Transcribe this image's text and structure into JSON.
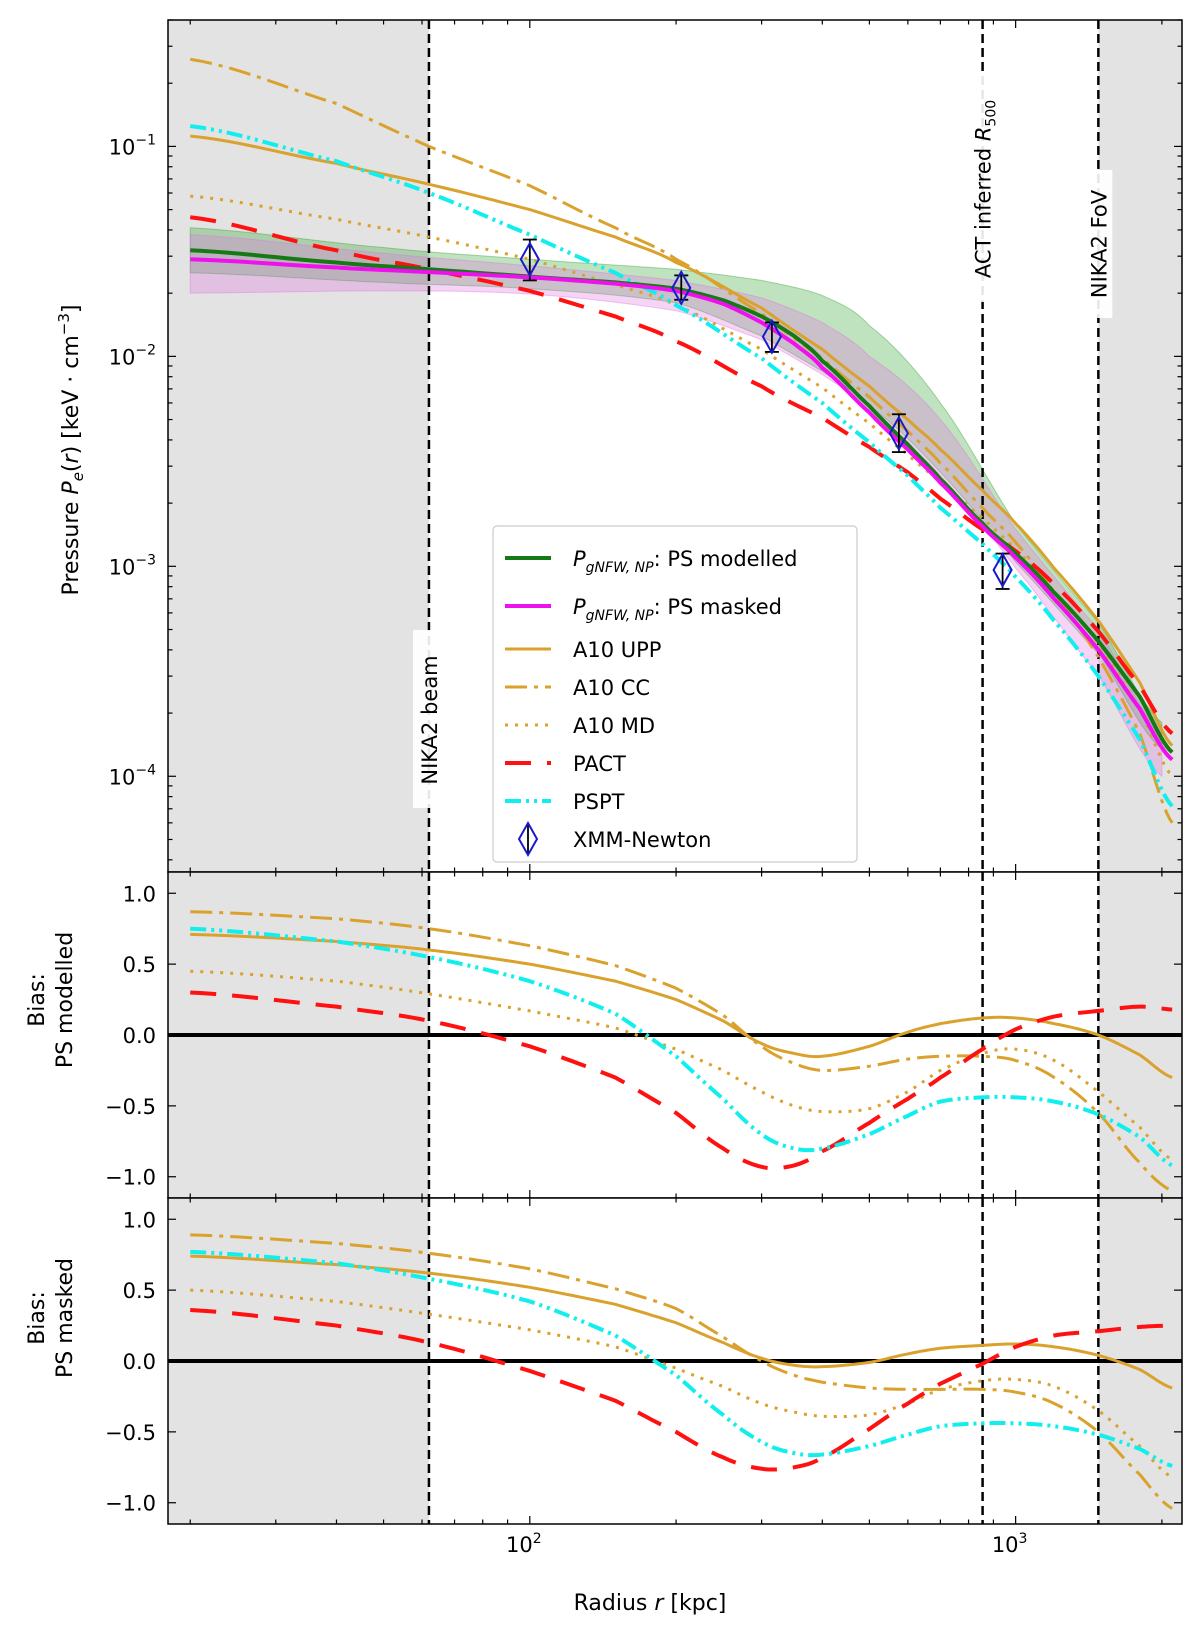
{
  "chart_data": [
    {
      "panel": "top",
      "type": "line",
      "xscale": "log",
      "yscale": "log",
      "xlim": [
        18,
        2200
      ],
      "ylim": [
        3.5e-05,
        0.4
      ],
      "xlabel": "Radius r [kpc]",
      "ylabel": "Pressure P_e(r) [keV · cm^-3]",
      "yticks": [
        {
          "value": 0.1,
          "label": "10",
          "exp": "−1"
        },
        {
          "value": 0.01,
          "label": "10",
          "exp": "−2"
        },
        {
          "value": 0.001,
          "label": "10",
          "exp": "−3"
        },
        {
          "value": 0.0001,
          "label": "10",
          "exp": "−4"
        }
      ],
      "shaded_regions": [
        {
          "x": [
            18,
            62
          ],
          "color": "#e3e3e3"
        },
        {
          "x": [
            1480,
            2200
          ],
          "color": "#e3e3e3"
        }
      ],
      "vlines": [
        {
          "x": 62,
          "label": "NIKA2 beam"
        },
        {
          "x": 855,
          "label": "ACT inferred R500"
        },
        {
          "x": 1480,
          "label": "NIKA2 FoV"
        }
      ],
      "bands": [
        {
          "name": "PS modelled band",
          "color": "#2ca02c",
          "x": [
            20,
            50,
            100,
            200,
            300,
            400,
            500,
            700,
            1000,
            1500,
            2000
          ],
          "lower": [
            0.025,
            0.0225,
            0.021,
            0.018,
            0.0125,
            0.0085,
            0.0058,
            0.0028,
            0.00105,
            0.00037,
            0.000135
          ],
          "upper": [
            0.041,
            0.033,
            0.029,
            0.026,
            0.023,
            0.0195,
            0.014,
            0.006,
            0.0016,
            0.00052,
            0.00018
          ]
        },
        {
          "name": "PS masked band",
          "color": "#e070e0",
          "x": [
            20,
            50,
            100,
            200,
            300,
            400,
            500,
            700,
            1000,
            1500,
            2000
          ],
          "lower": [
            0.02,
            0.0205,
            0.0198,
            0.0165,
            0.012,
            0.0082,
            0.0056,
            0.0027,
            0.00098,
            0.00029,
            0.0001
          ],
          "upper": [
            0.038,
            0.031,
            0.027,
            0.023,
            0.019,
            0.0145,
            0.01,
            0.005,
            0.0015,
            0.00048,
            0.00016
          ]
        }
      ],
      "series": [
        {
          "name": "P_gNFW,NP: PS modelled",
          "color": "#157a15",
          "dash": "",
          "width": 4,
          "x": [
            20,
            40,
            62,
            100,
            150,
            200,
            250,
            300,
            350,
            400,
            500,
            600,
            700,
            855,
            1000,
            1200,
            1480,
            1800,
            2100
          ],
          "y": [
            0.032,
            0.028,
            0.026,
            0.024,
            0.0225,
            0.021,
            0.0185,
            0.0155,
            0.0125,
            0.0095,
            0.0058,
            0.0038,
            0.0026,
            0.0016,
            0.00115,
            0.00075,
            0.00044,
            0.00024,
            0.00013
          ]
        },
        {
          "name": "P_gNFW,NP: PS masked",
          "color": "#ee11ee",
          "dash": "",
          "width": 4,
          "x": [
            20,
            40,
            62,
            100,
            150,
            200,
            250,
            300,
            350,
            400,
            500,
            600,
            700,
            855,
            1000,
            1200,
            1480,
            1800,
            2100
          ],
          "y": [
            0.029,
            0.0265,
            0.0252,
            0.0238,
            0.0222,
            0.0205,
            0.0178,
            0.0145,
            0.0115,
            0.0088,
            0.0054,
            0.0036,
            0.0025,
            0.00155,
            0.0011,
            0.0007,
            0.0004,
            0.00021,
            0.00012
          ]
        },
        {
          "name": "A10 UPP",
          "color": "#daa22d",
          "dash": "",
          "width": 3,
          "x": [
            20,
            40,
            62,
            100,
            150,
            200,
            300,
            400,
            500,
            600,
            700,
            855,
            1000,
            1200,
            1480,
            1800,
            2100
          ],
          "y": [
            0.112,
            0.083,
            0.066,
            0.05,
            0.037,
            0.028,
            0.017,
            0.0108,
            0.0072,
            0.005,
            0.0036,
            0.0023,
            0.0016,
            0.00098,
            0.00055,
            0.00028,
            0.00014
          ]
        },
        {
          "name": "A10 CC",
          "color": "#daa22d",
          "dash": "22 7 4 7",
          "width": 3,
          "x": [
            20,
            40,
            62,
            100,
            150,
            200,
            300,
            400,
            500,
            600,
            700,
            855,
            1000,
            1200,
            1480,
            1800,
            2100
          ],
          "y": [
            0.26,
            0.16,
            0.1,
            0.065,
            0.041,
            0.029,
            0.016,
            0.0098,
            0.0064,
            0.0044,
            0.0031,
            0.0019,
            0.0013,
            0.00075,
            0.00037,
            0.00016,
            6e-05
          ]
        },
        {
          "name": "A10 MD",
          "color": "#daa22d",
          "dash": "3 7",
          "width": 3,
          "x": [
            20,
            40,
            62,
            100,
            150,
            200,
            300,
            400,
            500,
            600,
            700,
            855,
            1000,
            1200,
            1480,
            1800,
            2100
          ],
          "y": [
            0.058,
            0.045,
            0.037,
            0.029,
            0.022,
            0.0175,
            0.0108,
            0.0071,
            0.0048,
            0.0034,
            0.0025,
            0.0017,
            0.0012,
            0.00076,
            0.00043,
            0.00021,
            0.0001
          ]
        },
        {
          "name": "PACT",
          "color": "#ff1111",
          "dash": "26 16",
          "width": 4,
          "x": [
            20,
            40,
            62,
            100,
            150,
            200,
            300,
            400,
            500,
            600,
            700,
            855,
            1000,
            1200,
            1480,
            1800,
            2100
          ],
          "y": [
            0.046,
            0.032,
            0.026,
            0.0205,
            0.0155,
            0.0118,
            0.0072,
            0.0051,
            0.0037,
            0.0028,
            0.0021,
            0.0015,
            0.00118,
            0.00082,
            0.00049,
            0.00027,
            0.00016
          ]
        },
        {
          "name": "PSPT",
          "color": "#11eeee",
          "dash": "16 5 3 5 3 5",
          "width": 4,
          "x": [
            20,
            40,
            62,
            100,
            150,
            200,
            300,
            400,
            500,
            600,
            700,
            855,
            1000,
            1200,
            1480,
            1800,
            2100
          ],
          "y": [
            0.125,
            0.085,
            0.06,
            0.038,
            0.025,
            0.0175,
            0.0098,
            0.006,
            0.0039,
            0.0027,
            0.0019,
            0.00128,
            0.00089,
            0.00055,
            0.0003,
            0.00015,
            7.2e-05
          ]
        }
      ],
      "points": {
        "name": "XMM-Newton",
        "color": "#1a1acc",
        "x": [
          100,
          205,
          315,
          575,
          940
        ],
        "y": [
          0.029,
          0.0212,
          0.0124,
          0.0043,
          0.00096
        ],
        "yerr_low": [
          0.023,
          0.0186,
          0.0105,
          0.0035,
          0.00078
        ],
        "yerr_high": [
          0.036,
          0.0243,
          0.0145,
          0.0053,
          0.00115
        ]
      },
      "legend": {
        "position": "center-bottom",
        "entries": [
          {
            "math": "P",
            "sub": "gNFW, NP",
            "text": ": PS modelled"
          },
          {
            "math": "P",
            "sub": "gNFW, NP",
            "text": ": PS masked"
          },
          {
            "text": "A10 UPP"
          },
          {
            "text": "A10 CC"
          },
          {
            "text": "A10 MD"
          },
          {
            "text": "PACT"
          },
          {
            "text": "PSPT"
          },
          {
            "text": "XMM-Newton"
          }
        ]
      }
    },
    {
      "panel": "middle",
      "type": "line",
      "xscale": "log",
      "ylim": [
        -1.15,
        1.15
      ],
      "ylabel": [
        "Bias:",
        "PS modelled"
      ],
      "yticks": [
        1.0,
        0.5,
        0.0,
        -0.5,
        -1.0
      ],
      "ytick_labels": [
        "1.0",
        "0.5",
        "0.0",
        "−0.5",
        "−1.0"
      ],
      "series": [
        {
          "name": "A10 UPP",
          "x": [
            20,
            40,
            62,
            100,
            150,
            200,
            250,
            300,
            350,
            400,
            500,
            600,
            700,
            855,
            1000,
            1200,
            1480,
            1800,
            2100
          ],
          "y": [
            0.71,
            0.66,
            0.6,
            0.5,
            0.38,
            0.25,
            0.1,
            -0.06,
            -0.13,
            -0.15,
            -0.08,
            0.02,
            0.08,
            0.12,
            0.12,
            0.08,
            0.0,
            -0.14,
            -0.3
          ]
        },
        {
          "name": "A10 CC",
          "x": [
            20,
            40,
            62,
            100,
            150,
            200,
            250,
            300,
            350,
            400,
            500,
            600,
            700,
            855,
            1000,
            1200,
            1480,
            1800,
            2100
          ],
          "y": [
            0.87,
            0.82,
            0.75,
            0.63,
            0.49,
            0.33,
            0.14,
            -0.08,
            -0.2,
            -0.25,
            -0.22,
            -0.17,
            -0.15,
            -0.15,
            -0.18,
            -0.3,
            -0.55,
            -0.9,
            -1.1
          ]
        },
        {
          "name": "A10 MD",
          "x": [
            20,
            40,
            62,
            100,
            150,
            200,
            250,
            300,
            350,
            400,
            500,
            600,
            700,
            855,
            1000,
            1200,
            1480,
            1800,
            2100
          ],
          "y": [
            0.45,
            0.38,
            0.29,
            0.17,
            0.05,
            -0.1,
            -0.25,
            -0.4,
            -0.5,
            -0.54,
            -0.52,
            -0.4,
            -0.25,
            -0.13,
            -0.1,
            -0.18,
            -0.4,
            -0.65,
            -0.88
          ]
        },
        {
          "name": "PACT",
          "x": [
            20,
            40,
            62,
            100,
            150,
            200,
            250,
            300,
            350,
            400,
            500,
            600,
            700,
            855,
            1000,
            1200,
            1480,
            1800,
            2100
          ],
          "y": [
            0.3,
            0.2,
            0.1,
            -0.08,
            -0.3,
            -0.55,
            -0.8,
            -0.93,
            -0.92,
            -0.82,
            -0.62,
            -0.45,
            -0.3,
            -0.1,
            0.04,
            0.13,
            0.17,
            0.2,
            0.18
          ]
        },
        {
          "name": "PSPT",
          "x": [
            20,
            40,
            62,
            100,
            150,
            200,
            250,
            300,
            350,
            400,
            500,
            600,
            700,
            855,
            1000,
            1200,
            1480,
            1800,
            2100
          ],
          "y": [
            0.75,
            0.66,
            0.55,
            0.38,
            0.15,
            -0.15,
            -0.45,
            -0.7,
            -0.8,
            -0.8,
            -0.7,
            -0.57,
            -0.47,
            -0.44,
            -0.44,
            -0.47,
            -0.56,
            -0.72,
            -0.92
          ]
        }
      ]
    },
    {
      "panel": "bottom",
      "type": "line",
      "xscale": "log",
      "ylim": [
        -1.15,
        1.15
      ],
      "xlabel": "Radius r [kpc]",
      "xticks": [
        {
          "value": 100,
          "label": "10",
          "exp": "2"
        },
        {
          "value": 1000,
          "label": "10",
          "exp": "3"
        }
      ],
      "ylabel": [
        "Bias:",
        "PS masked"
      ],
      "yticks": [
        1.0,
        0.5,
        0.0,
        -0.5,
        -1.0
      ],
      "ytick_labels": [
        "1.0",
        "0.5",
        "0.0",
        "−0.5",
        "−1.0"
      ],
      "series": [
        {
          "name": "A10 UPP",
          "x": [
            20,
            40,
            62,
            100,
            150,
            200,
            250,
            300,
            350,
            400,
            500,
            600,
            700,
            855,
            1000,
            1200,
            1480,
            1800,
            2100
          ],
          "y": [
            0.74,
            0.68,
            0.62,
            0.52,
            0.4,
            0.27,
            0.13,
            0.02,
            -0.03,
            -0.04,
            -0.01,
            0.05,
            0.09,
            0.11,
            0.12,
            0.1,
            0.04,
            -0.06,
            -0.19
          ]
        },
        {
          "name": "A10 CC",
          "x": [
            20,
            40,
            62,
            100,
            150,
            200,
            250,
            300,
            350,
            400,
            500,
            600,
            700,
            855,
            1000,
            1200,
            1480,
            1800,
            2100
          ],
          "y": [
            0.89,
            0.83,
            0.76,
            0.65,
            0.51,
            0.37,
            0.17,
            0.0,
            -0.1,
            -0.15,
            -0.19,
            -0.2,
            -0.2,
            -0.2,
            -0.22,
            -0.3,
            -0.5,
            -0.8,
            -1.04
          ]
        },
        {
          "name": "A10 MD",
          "x": [
            20,
            40,
            62,
            100,
            150,
            200,
            250,
            300,
            350,
            400,
            500,
            600,
            700,
            855,
            1000,
            1200,
            1480,
            1800,
            2100
          ],
          "y": [
            0.5,
            0.42,
            0.33,
            0.22,
            0.1,
            -0.05,
            -0.18,
            -0.3,
            -0.36,
            -0.39,
            -0.38,
            -0.3,
            -0.2,
            -0.14,
            -0.13,
            -0.18,
            -0.35,
            -0.6,
            -0.82
          ]
        },
        {
          "name": "PACT",
          "x": [
            20,
            40,
            62,
            100,
            150,
            200,
            250,
            300,
            350,
            400,
            500,
            600,
            700,
            855,
            1000,
            1200,
            1480,
            1800,
            2100
          ],
          "y": [
            0.36,
            0.25,
            0.13,
            -0.07,
            -0.28,
            -0.5,
            -0.68,
            -0.76,
            -0.75,
            -0.68,
            -0.48,
            -0.3,
            -0.16,
            -0.02,
            0.1,
            0.18,
            0.21,
            0.24,
            0.25
          ]
        },
        {
          "name": "PSPT",
          "x": [
            20,
            40,
            62,
            100,
            150,
            200,
            250,
            300,
            350,
            400,
            500,
            600,
            700,
            855,
            1000,
            1200,
            1480,
            1800,
            2100
          ],
          "y": [
            0.77,
            0.69,
            0.58,
            0.42,
            0.18,
            -0.1,
            -0.38,
            -0.57,
            -0.65,
            -0.66,
            -0.6,
            -0.52,
            -0.46,
            -0.44,
            -0.44,
            -0.46,
            -0.52,
            -0.62,
            -0.74
          ]
        }
      ]
    }
  ]
}
